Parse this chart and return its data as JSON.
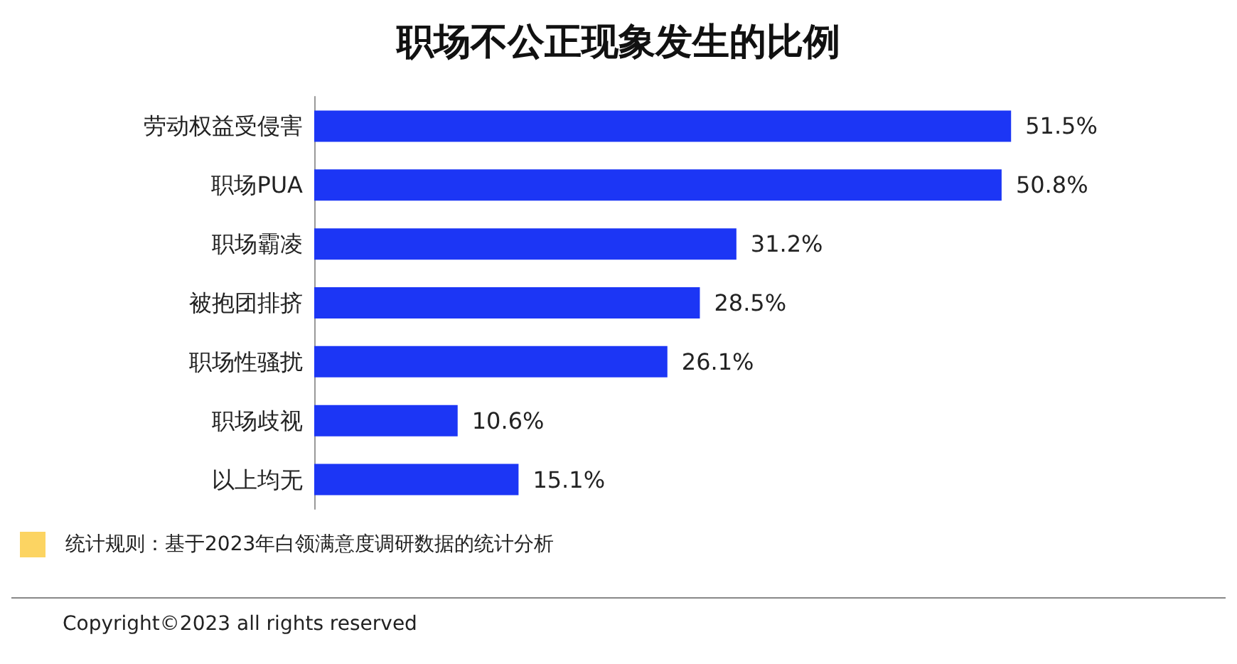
{
  "chart_data": {
    "type": "bar",
    "orientation": "horizontal",
    "title": "职场不公正现象发生的比例",
    "categories": [
      "劳动权益受侵害",
      "职场PUA",
      "职场霸凌",
      "被抱团排挤",
      "职场性骚扰",
      "职场歧视",
      "以上均无"
    ],
    "values": [
      51.5,
      50.8,
      31.2,
      28.5,
      26.1,
      10.6,
      15.1
    ],
    "value_labels": [
      "51.5%",
      "50.8%",
      "31.2%",
      "28.5%",
      "26.1%",
      "10.6%",
      "15.1%"
    ],
    "color": "#1c36f5",
    "tick_labels": "y",
    "annotations": [
      "统计规则：基于2023年白领满意度调研数据的统计分析",
      "Copyright©2023 all rights reserved"
    ]
  }
}
